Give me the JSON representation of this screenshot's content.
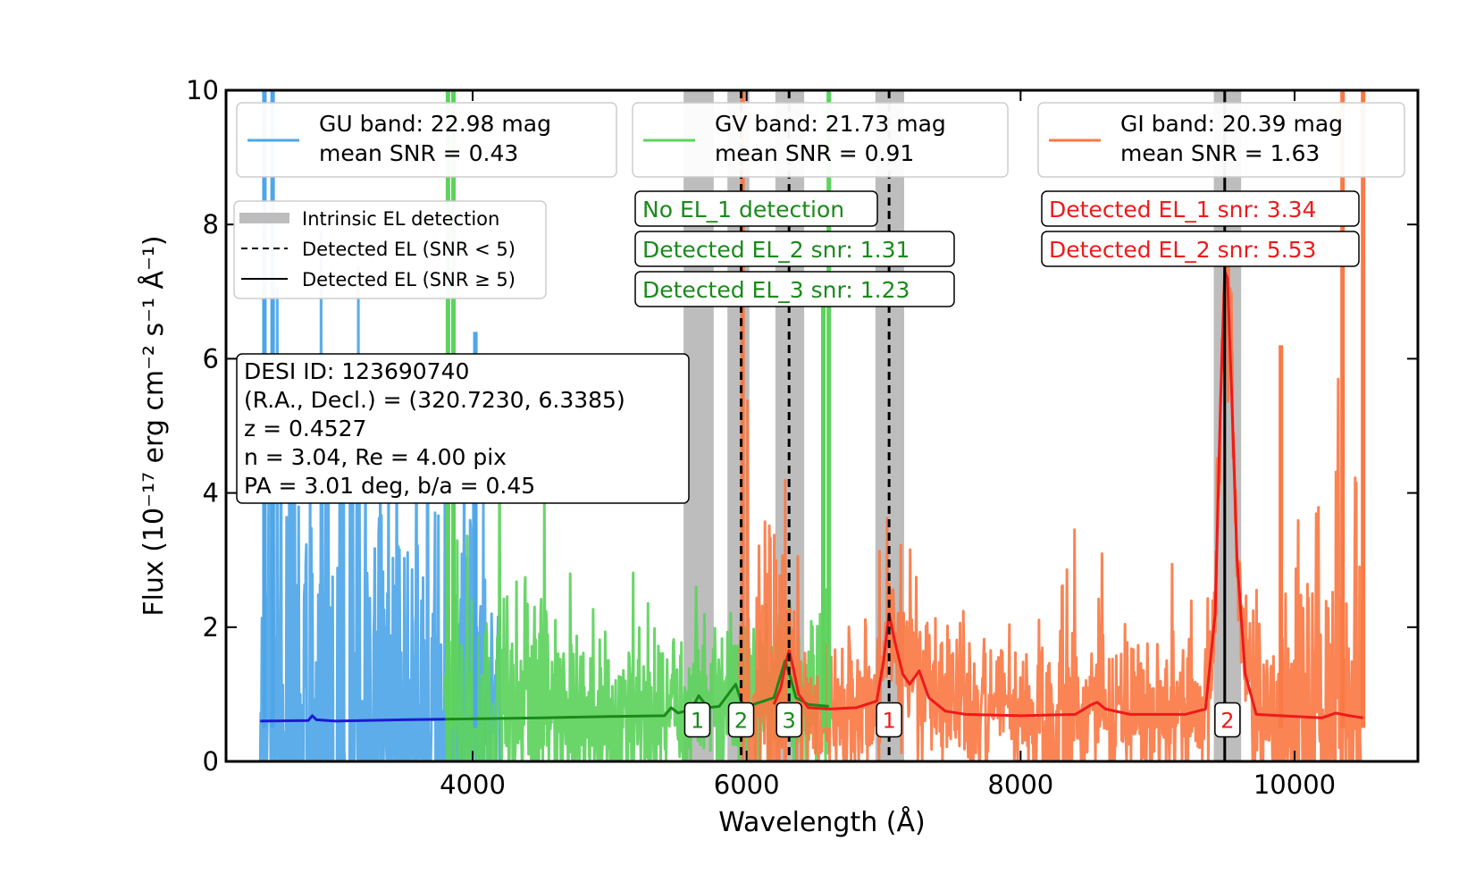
{
  "chart_data": {
    "type": "line",
    "xlabel": "Wavelength (Å)",
    "ylabel_prefix": "Flux",
    "ylabel_unit": "(10⁻¹⁷ erg cm⁻² s⁻¹ Å⁻¹)",
    "xlim": [
      2200,
      10900
    ],
    "ylim": [
      0,
      10
    ],
    "xticks": [
      4000,
      6000,
      8000,
      10000
    ],
    "yticks": [
      0,
      2,
      4,
      6,
      8,
      10
    ],
    "xtick_labels": [
      "4000",
      "6000",
      "8000",
      "10000"
    ],
    "ytick_labels": [
      "0",
      "2",
      "4",
      "6",
      "8",
      "10"
    ],
    "grid": false,
    "series": [
      {
        "name": "GU band: 22.98 mag",
        "snr_label": "mean SNR = 0.43",
        "noisy_color": "#4ea6e8",
        "model_color": "#1a1ad6",
        "x_range": [
          2450,
          4200
        ],
        "model_x": [
          2450,
          2800,
          2830,
          2860,
          3000,
          3500,
          3800
        ],
        "model_y": [
          0.6,
          0.61,
          0.68,
          0.62,
          0.6,
          0.62,
          0.63
        ]
      },
      {
        "name": "GV band: 21.73 mag",
        "snr_label": "mean SNR = 0.91",
        "noisy_color": "#5dd35d",
        "model_color": "#1a8a1a",
        "x_range": [
          3800,
          6600
        ],
        "model_x": [
          3800,
          4500,
          5000,
          5400,
          5450,
          5500,
          5600,
          5650,
          5720,
          5800,
          5920,
          5960,
          6000,
          6050,
          6200,
          6280,
          6320,
          6360,
          6450,
          6600
        ],
        "model_y": [
          0.63,
          0.65,
          0.67,
          0.68,
          0.8,
          0.72,
          0.78,
          0.98,
          0.8,
          0.82,
          1.15,
          0.9,
          0.8,
          0.85,
          0.95,
          1.5,
          1.25,
          0.95,
          0.85,
          0.82
        ]
      },
      {
        "name": "GI band: 20.39 mag",
        "snr_label": "mean SNR = 1.63",
        "noisy_color": "#fa7a45",
        "model_color": "#ee1a1a",
        "x_range": [
          5950,
          10500
        ],
        "model_x": [
          6200,
          6250,
          6290,
          6310,
          6340,
          6380,
          6450,
          6600,
          6800,
          6950,
          7000,
          7040,
          7080,
          7140,
          7190,
          7260,
          7330,
          7450,
          7600,
          8000,
          8400,
          8520,
          8560,
          8620,
          8800,
          9200,
          9350,
          9420,
          9460,
          9490,
          9510,
          9540,
          9580,
          9640,
          9720,
          9900,
          10200,
          10300,
          10400,
          10500
        ],
        "model_y": [
          0.85,
          1.1,
          1.5,
          1.65,
          1.4,
          1.0,
          0.8,
          0.78,
          0.8,
          0.9,
          1.5,
          2.2,
          1.8,
          1.3,
          1.15,
          1.35,
          0.95,
          0.75,
          0.7,
          0.68,
          0.7,
          0.85,
          0.88,
          0.78,
          0.7,
          0.7,
          0.78,
          2.2,
          5.4,
          7.3,
          7.2,
          5.5,
          3.0,
          1.3,
          0.7,
          0.68,
          0.65,
          0.72,
          0.68,
          0.65
        ]
      }
    ],
    "intrinsic_el_bands": [
      {
        "x0": 5540,
        "x1": 5760
      },
      {
        "x0": 5860,
        "x1": 6020
      },
      {
        "x0": 6210,
        "x1": 6420
      },
      {
        "x0": 6940,
        "x1": 7150
      },
      {
        "x0": 9410,
        "x1": 9610
      }
    ],
    "detected_lines": [
      {
        "x": 5960,
        "style": "dashed"
      },
      {
        "x": 6310,
        "style": "dashed"
      },
      {
        "x": 7040,
        "style": "dashed"
      },
      {
        "x": 9490,
        "style": "solid"
      }
    ],
    "markers": [
      {
        "x": 5640,
        "label": "1",
        "color": "#1a8a1a"
      },
      {
        "x": 5960,
        "label": "2",
        "color": "#1a8a1a"
      },
      {
        "x": 6310,
        "label": "3",
        "color": "#1a8a1a"
      },
      {
        "x": 7040,
        "label": "1",
        "color": "#ee1a1a"
      },
      {
        "x": 9510,
        "label": "2",
        "color": "#ee1a1a"
      }
    ],
    "style_legend": [
      {
        "label": "Intrinsic EL detection",
        "style": "band"
      },
      {
        "label": "Detected EL (SNR < 5)",
        "style": "dashed"
      },
      {
        "label": "Detected EL (SNR ≥ 5)",
        "style": "solid"
      }
    ],
    "detections": {
      "gv": {
        "color": "#1a8a1a",
        "items": [
          "No EL_1 detection",
          "Detected EL_2 snr: 1.31",
          "Detected EL_3 snr: 1.23"
        ]
      },
      "gi": {
        "color": "#ee1a1a",
        "items": [
          "Detected EL_1 snr: 3.34",
          "Detected EL_2 snr: 5.53"
        ]
      }
    },
    "info_box": [
      "DESI ID: 123690740",
      "(R.A., Decl.) = (320.7230, 6.3385)",
      "z = 0.4527",
      "n = 3.04, Re = 4.00 pix",
      "PA = 3.01 deg, b/a = 0.45"
    ]
  }
}
